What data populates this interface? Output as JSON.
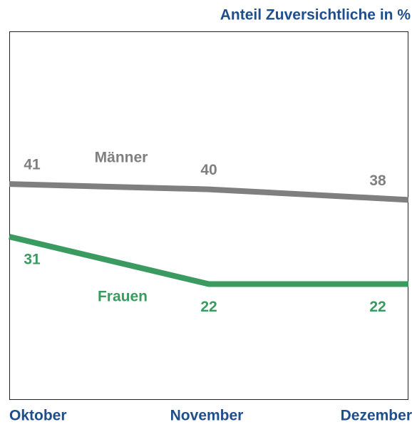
{
  "chart_data": {
    "type": "line",
    "title": "Anteil Zuversichtliche in %",
    "categories": [
      "Oktober",
      "November",
      "Dezember"
    ],
    "series": [
      {
        "name": "Männer",
        "color": "#7f7f7f",
        "values": [
          41,
          40,
          38
        ]
      },
      {
        "name": "Frauen",
        "color": "#3a9a60",
        "values": [
          31,
          22,
          22
        ]
      }
    ],
    "ylim": [
      0,
      70
    ]
  }
}
